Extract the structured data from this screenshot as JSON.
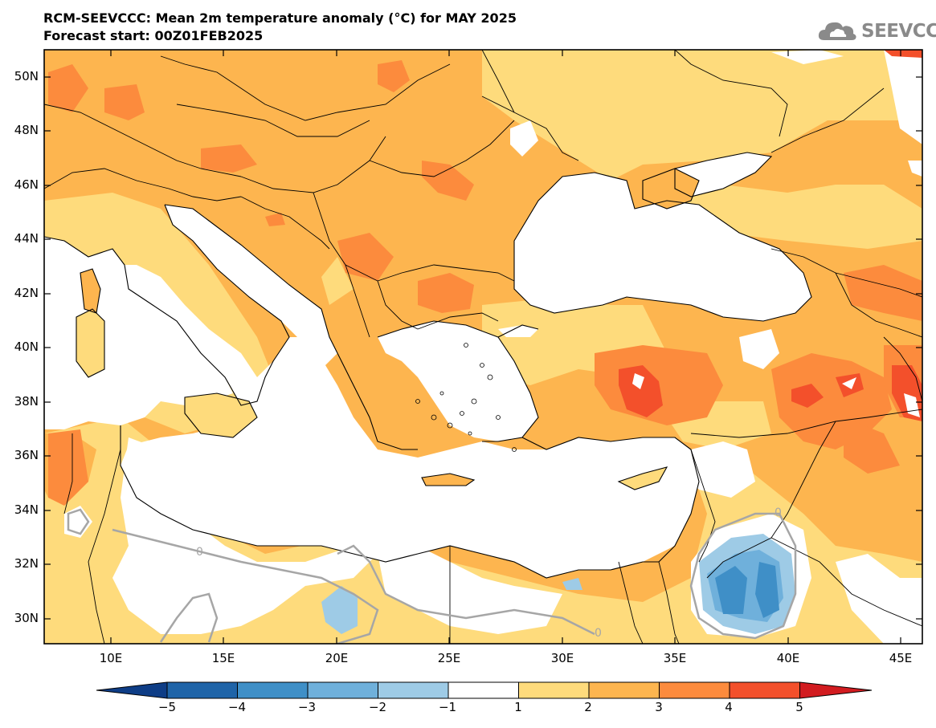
{
  "title": {
    "line1": "RCM-SEEVCCC: Mean 2m temperature anomaly (°C) for MAY 2025",
    "line2": "Forecast start: 00Z01FEB2025"
  },
  "logo": {
    "text": "SEEVCCC",
    "icon": "cloud-icon"
  },
  "map": {
    "lat_labels": [
      "50N",
      "48N",
      "46N",
      "44N",
      "42N",
      "40N",
      "38N",
      "36N",
      "34N",
      "32N",
      "30N"
    ],
    "lon_labels": [
      "10E",
      "15E",
      "20E",
      "25E",
      "30E",
      "35E",
      "40E",
      "45E"
    ],
    "contour_labels": [
      "0",
      "0",
      "0"
    ]
  },
  "colorbar": {
    "labels": [
      "−5",
      "−4",
      "−3",
      "−2",
      "−1",
      "1",
      "2",
      "3",
      "4",
      "5"
    ],
    "colors": [
      "#0e3d86",
      "#1f64a8",
      "#3f8fc7",
      "#6fb0db",
      "#9ecbe6",
      "#ffffff",
      "#fedb7c",
      "#fdb54f",
      "#fc8b3d",
      "#f3502b",
      "#d21c20"
    ]
  }
}
